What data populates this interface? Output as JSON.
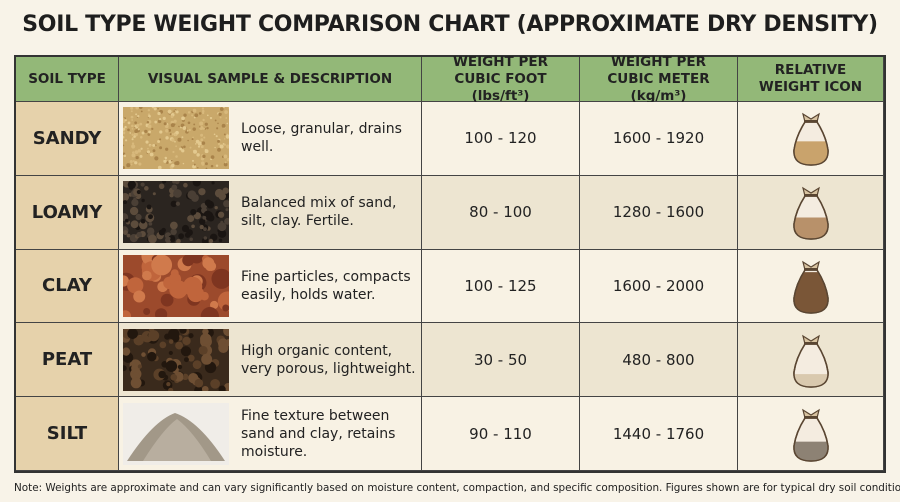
{
  "header": {
    "title": "SOIL TYPE WEIGHT COMPARISON CHART (APPROXIMATE DRY DENSITY)"
  },
  "table": {
    "columns": [
      "SOIL TYPE",
      "VISUAL SAMPLE & DESCRIPTION",
      "WEIGHT PER CUBIC FOOT (lbs/ft³)",
      "WEIGHT PER CUBIC METER (kg/m³)",
      "RELATIVE WEIGHT ICON"
    ],
    "rows": [
      [
        "SANDY",
        "Loose, granular, drains well.",
        "100 - 120",
        "1600 - 1920"
      ],
      [
        "LOAMY",
        "Balanced mix of sand, silt, clay. Fertile.",
        "80 - 100",
        "1280 - 1600"
      ],
      [
        "CLAY",
        "Fine particles, compacts easily, holds water.",
        "100 - 125",
        "1600 - 2000"
      ],
      [
        "PEAT",
        "High organic content, very porous, lightweight.",
        "30 - 50",
        "480 - 800"
      ],
      [
        "SILT",
        "Fine texture between sand and clay, retains moisture.",
        "90 - 110",
        "1440 - 1760"
      ]
    ]
  },
  "footer": {
    "note": "Note: Weights are approximate and can vary significantly based on moisture content, compaction, and specific composition. Figures shown are for typical dry soil conditions."
  }
}
